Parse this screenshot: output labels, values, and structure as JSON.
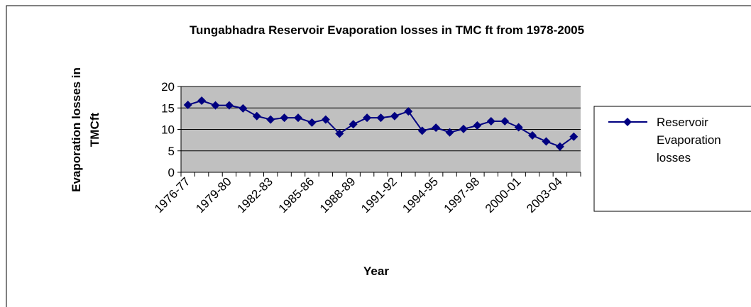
{
  "chart_data": {
    "type": "line",
    "title": "Tungabhadra Reservoir Evaporation losses in TMC ft from 1978-2005",
    "xlabel": "Year",
    "ylabel": "Evaporation losses in TMCft",
    "categories": [
      "1976-77",
      null,
      null,
      "1979-80",
      null,
      null,
      "1982-83",
      null,
      null,
      "1985-86",
      null,
      null,
      "1988-89",
      null,
      null,
      "1991-92",
      null,
      null,
      "1994-95",
      null,
      null,
      "1997-98",
      null,
      null,
      "2000-01",
      null,
      null,
      "2003-04",
      null
    ],
    "series": [
      {
        "name": "Reservoir Evaporation losses",
        "color": "#000080",
        "values": [
          15.7,
          16.7,
          15.6,
          15.6,
          14.9,
          13.1,
          12.3,
          12.7,
          12.7,
          11.6,
          12.3,
          9.0,
          11.2,
          12.7,
          12.7,
          13.1,
          14.2,
          9.7,
          10.4,
          9.3,
          10.1,
          10.9,
          11.9,
          11.9,
          10.5,
          8.6,
          7.2,
          6.0,
          8.3
        ]
      }
    ],
    "ylim": [
      0,
      20
    ],
    "yticks": [
      0,
      5,
      10,
      15,
      20
    ],
    "grid": true,
    "legend": "right"
  }
}
